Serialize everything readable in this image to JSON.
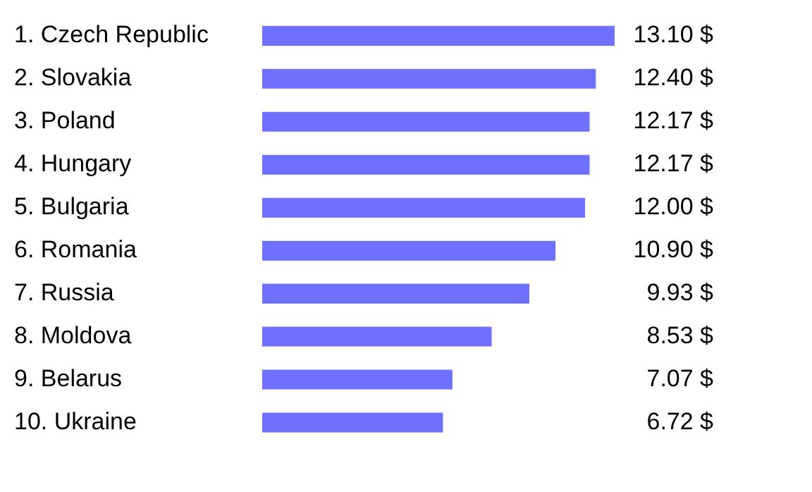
{
  "chart_data": {
    "type": "bar",
    "orientation": "horizontal",
    "categories": [
      "1. Czech Republic",
      "2. Slovakia",
      "3. Poland",
      "4. Hungary",
      "5. Bulgaria",
      "6. Romania",
      "7. Russia",
      "8. Moldova",
      "9. Belarus",
      "10. Ukraine"
    ],
    "values": [
      13.1,
      12.4,
      12.17,
      12.17,
      12.0,
      10.9,
      9.93,
      8.53,
      7.07,
      6.72
    ],
    "value_labels": [
      "13.10 $",
      "12.40 $",
      "12.17 $",
      "12.17 $",
      "12.00 $",
      "10.90 $",
      "9.93 $",
      "8.53 $",
      "7.07 $",
      "6.72 $"
    ],
    "color": "#7070ff",
    "legend": false,
    "tick_labels": "y"
  }
}
